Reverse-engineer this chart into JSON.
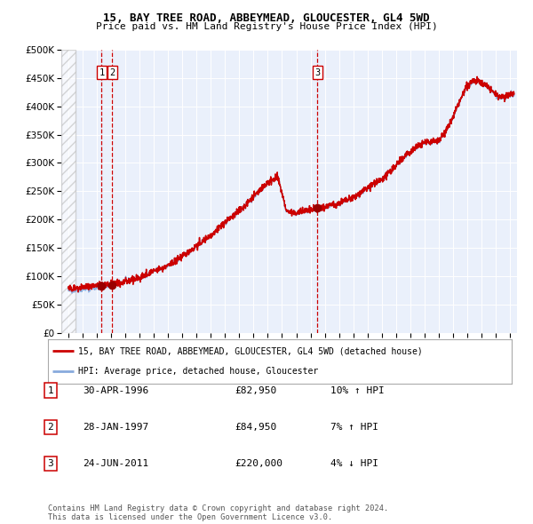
{
  "title1": "15, BAY TREE ROAD, ABBEYMEAD, GLOUCESTER, GL4 5WD",
  "title2": "Price paid vs. HM Land Registry's House Price Index (HPI)",
  "legend_line1": "15, BAY TREE ROAD, ABBEYMEAD, GLOUCESTER, GL4 5WD (detached house)",
  "legend_line2": "HPI: Average price, detached house, Gloucester",
  "table_rows": [
    {
      "num": "1",
      "date": "30-APR-1996",
      "price": "£82,950",
      "hpi": "10% ↑ HPI"
    },
    {
      "num": "2",
      "date": "28-JAN-1997",
      "price": "£84,950",
      "hpi": "7% ↑ HPI"
    },
    {
      "num": "3",
      "date": "24-JUN-2011",
      "price": "£220,000",
      "hpi": "4% ↓ HPI"
    }
  ],
  "footer": "Contains HM Land Registry data © Crown copyright and database right 2024.\nThis data is licensed under the Open Government Licence v3.0.",
  "sale_points": [
    {
      "year": 1996.33,
      "price": 82950
    },
    {
      "year": 1997.08,
      "price": 84950
    },
    {
      "year": 2011.48,
      "price": 220000
    }
  ],
  "vline_years": [
    1996.33,
    1997.08,
    2011.48
  ],
  "marker_labels": [
    "1",
    "2",
    "3"
  ],
  "ylim": [
    0,
    500000
  ],
  "yticks": [
    0,
    50000,
    100000,
    150000,
    200000,
    250000,
    300000,
    350000,
    400000,
    450000,
    500000
  ],
  "xlim_start": 1993.5,
  "xlim_end": 2025.5,
  "hatch_xlim_end": 1994.5,
  "background_color": "#eaf0fb",
  "red_line_color": "#cc0000",
  "blue_line_color": "#88aadd",
  "vline_color": "#cc0000",
  "marker_color": "#990000",
  "box_edge_color": "#cc0000"
}
